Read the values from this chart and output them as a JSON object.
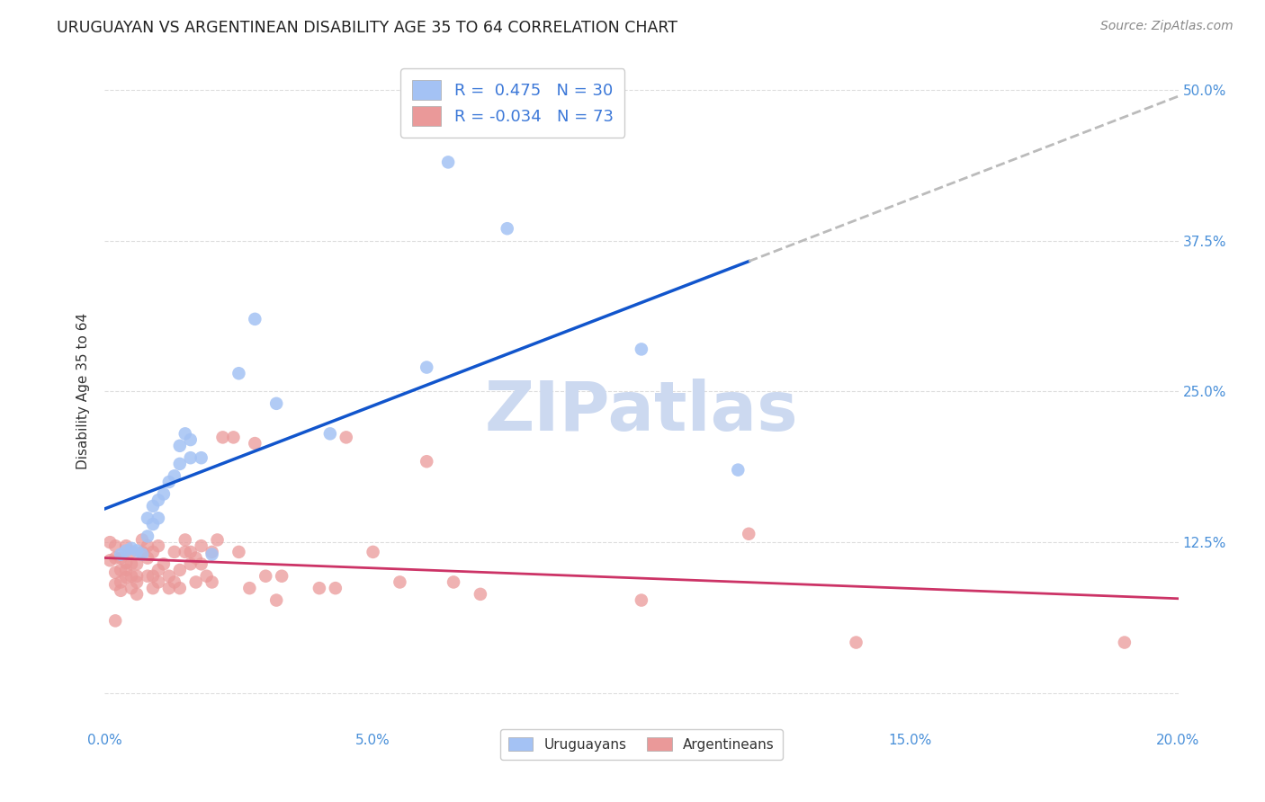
{
  "title": "URUGUAYAN VS ARGENTINEAN DISABILITY AGE 35 TO 64 CORRELATION CHART",
  "source": "Source: ZipAtlas.com",
  "ylabel": "Disability Age 35 to 64",
  "xlim": [
    0.0,
    0.2
  ],
  "ylim": [
    -0.03,
    0.53
  ],
  "xticks": [
    0.0,
    0.05,
    0.1,
    0.15,
    0.2
  ],
  "xticklabels": [
    "0.0%",
    "5.0%",
    "10.0%",
    "15.0%",
    "20.0%"
  ],
  "yticks": [
    0.0,
    0.125,
    0.25,
    0.375,
    0.5
  ],
  "yticklabels": [
    "",
    "12.5%",
    "25.0%",
    "37.5%",
    "50.0%"
  ],
  "blue_R": 0.475,
  "blue_N": 30,
  "pink_R": -0.034,
  "pink_N": 73,
  "blue_color": "#a4c2f4",
  "pink_color": "#ea9999",
  "trend_blue_color": "#1155cc",
  "trend_pink_color": "#cc3366",
  "dash_color": "#bbbbbb",
  "watermark_color": "#ccd9f0",
  "legend_blue_label": "Uruguayans",
  "legend_pink_label": "Argentineans",
  "blue_x": [
    0.003,
    0.004,
    0.005,
    0.006,
    0.007,
    0.008,
    0.008,
    0.009,
    0.009,
    0.01,
    0.01,
    0.011,
    0.012,
    0.013,
    0.014,
    0.014,
    0.015,
    0.016,
    0.016,
    0.018,
    0.02,
    0.025,
    0.028,
    0.032,
    0.042,
    0.06,
    0.064,
    0.075,
    0.1,
    0.118
  ],
  "blue_y": [
    0.115,
    0.118,
    0.12,
    0.118,
    0.115,
    0.13,
    0.145,
    0.14,
    0.155,
    0.145,
    0.16,
    0.165,
    0.175,
    0.18,
    0.19,
    0.205,
    0.215,
    0.195,
    0.21,
    0.195,
    0.115,
    0.265,
    0.31,
    0.24,
    0.215,
    0.27,
    0.44,
    0.385,
    0.285,
    0.185
  ],
  "pink_x": [
    0.001,
    0.001,
    0.002,
    0.002,
    0.002,
    0.002,
    0.003,
    0.003,
    0.003,
    0.003,
    0.004,
    0.004,
    0.004,
    0.004,
    0.005,
    0.005,
    0.005,
    0.005,
    0.006,
    0.006,
    0.006,
    0.006,
    0.007,
    0.007,
    0.008,
    0.008,
    0.008,
    0.009,
    0.009,
    0.009,
    0.01,
    0.01,
    0.01,
    0.011,
    0.012,
    0.012,
    0.013,
    0.013,
    0.014,
    0.014,
    0.015,
    0.015,
    0.016,
    0.016,
    0.017,
    0.017,
    0.018,
    0.018,
    0.019,
    0.02,
    0.02,
    0.021,
    0.022,
    0.024,
    0.025,
    0.027,
    0.028,
    0.03,
    0.032,
    0.033,
    0.04,
    0.043,
    0.045,
    0.05,
    0.055,
    0.06,
    0.065,
    0.07,
    0.1,
    0.12,
    0.14,
    0.19,
    0.002
  ],
  "pink_y": [
    0.11,
    0.125,
    0.09,
    0.1,
    0.112,
    0.122,
    0.085,
    0.092,
    0.102,
    0.112,
    0.096,
    0.102,
    0.108,
    0.122,
    0.087,
    0.097,
    0.107,
    0.117,
    0.082,
    0.092,
    0.097,
    0.107,
    0.117,
    0.127,
    0.097,
    0.112,
    0.122,
    0.087,
    0.097,
    0.117,
    0.092,
    0.102,
    0.122,
    0.107,
    0.087,
    0.097,
    0.092,
    0.117,
    0.087,
    0.102,
    0.117,
    0.127,
    0.107,
    0.117,
    0.092,
    0.112,
    0.107,
    0.122,
    0.097,
    0.092,
    0.117,
    0.127,
    0.212,
    0.212,
    0.117,
    0.087,
    0.207,
    0.097,
    0.077,
    0.097,
    0.087,
    0.087,
    0.212,
    0.117,
    0.092,
    0.192,
    0.092,
    0.082,
    0.077,
    0.132,
    0.042,
    0.042,
    0.06
  ],
  "background_color": "#ffffff",
  "grid_color": "#dddddd",
  "title_color": "#222222",
  "tick_color": "#4a90d9"
}
